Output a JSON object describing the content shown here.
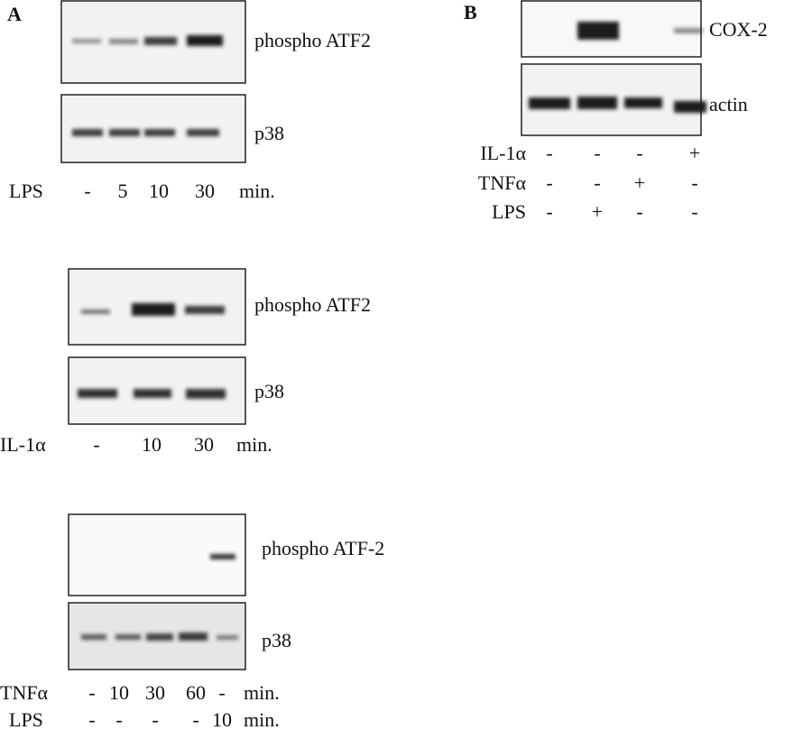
{
  "panel_a": {
    "label": "A",
    "blots": [
      {
        "bands": [
          "phospho ATF2",
          "p38"
        ],
        "conditions": [
          {
            "name": "LPS",
            "lanes": [
              "-",
              "5",
              "10",
              "30"
            ],
            "unit": "min."
          }
        ]
      },
      {
        "bands": [
          "phospho ATF2",
          "p38"
        ],
        "conditions": [
          {
            "name": "IL-1α",
            "lanes": [
              "-",
              "10",
              "30"
            ],
            "unit": "min."
          }
        ]
      },
      {
        "bands": [
          "phospho ATF-2",
          "p38"
        ],
        "conditions": [
          {
            "name": "TNFα",
            "lanes": [
              "-",
              "10",
              "30",
              "60",
              "-"
            ],
            "unit": "min."
          },
          {
            "name": "LPS",
            "lanes": [
              "-",
              "-",
              "-",
              "-",
              "10"
            ],
            "unit": "min."
          }
        ]
      }
    ]
  },
  "panel_b": {
    "label": "B",
    "bands": [
      "COX-2",
      "actin"
    ],
    "conditions": [
      {
        "name": "IL-1α",
        "lanes": [
          "-",
          "-",
          "-",
          "+"
        ]
      },
      {
        "name": "TNFα",
        "lanes": [
          "-",
          "-",
          "+",
          "-"
        ]
      },
      {
        "name": "LPS",
        "lanes": [
          "-",
          "+",
          "-",
          "-"
        ]
      }
    ]
  }
}
